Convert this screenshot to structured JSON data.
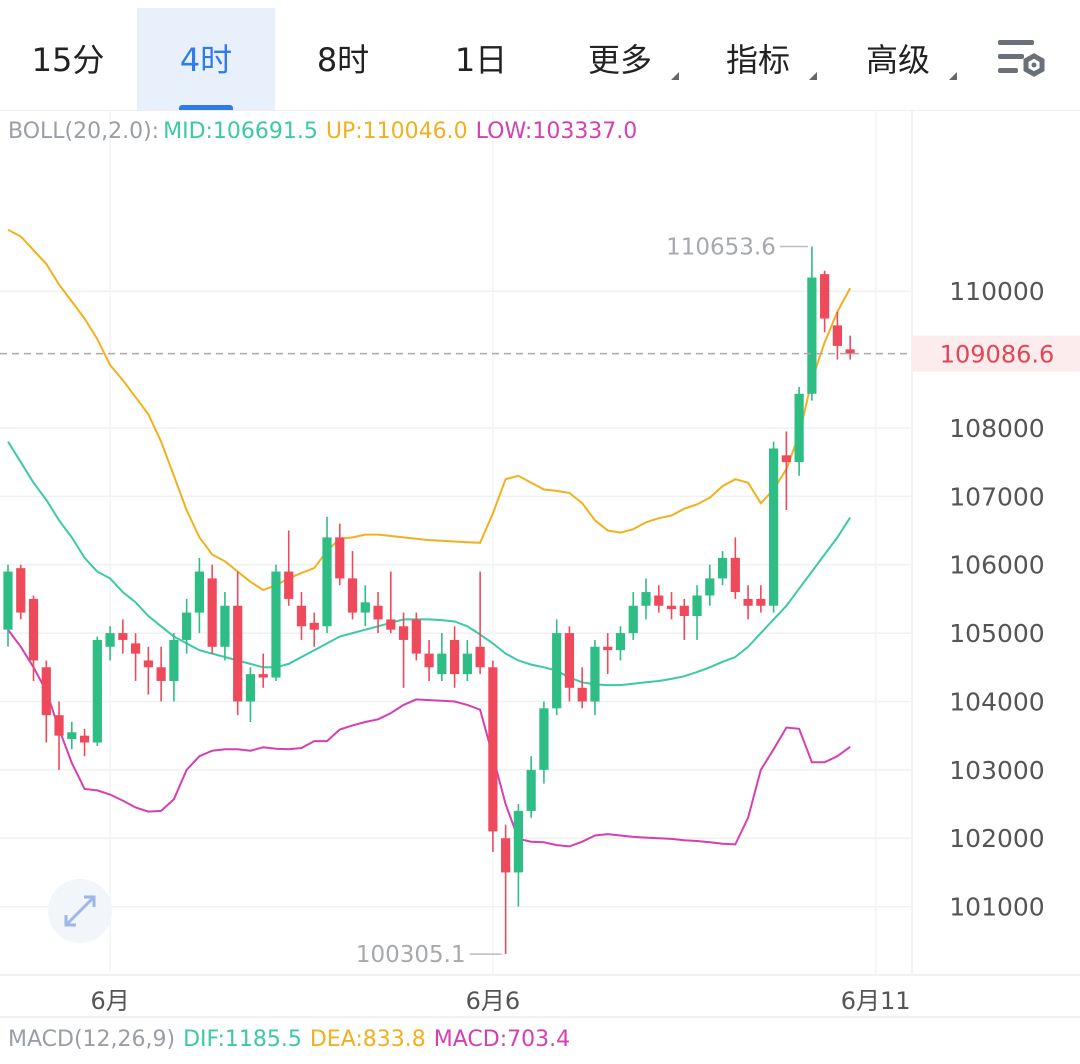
{
  "tabs": [
    {
      "label": "15分",
      "dropdown": false
    },
    {
      "label": "4时",
      "dropdown": false
    },
    {
      "label": "8时",
      "dropdown": false
    },
    {
      "label": "1日",
      "dropdown": false
    },
    {
      "label": "更多",
      "dropdown": true
    },
    {
      "label": "指标",
      "dropdown": true
    },
    {
      "label": "高级",
      "dropdown": true
    }
  ],
  "active_tab": 1,
  "chart_data": {
    "type": "candlestick",
    "boll_label": "BOLL(20,2.0):",
    "categories": [
      null,
      null,
      null,
      null,
      null,
      null,
      null,
      null,
      "6月",
      null,
      null,
      null,
      null,
      null,
      null,
      null,
      null,
      null,
      null,
      null,
      null,
      null,
      null,
      null,
      null,
      null,
      null,
      null,
      null,
      null,
      null,
      null,
      null,
      null,
      null,
      null,
      null,
      null,
      "6月6",
      null,
      null,
      null,
      null,
      null,
      null,
      null,
      null,
      null,
      null,
      null,
      null,
      null,
      null,
      null,
      null,
      null,
      null,
      null,
      null,
      null,
      null,
      null,
      null,
      null,
      null,
      null,
      null,
      null,
      "6月11"
    ],
    "open": [
      105050,
      105950,
      105500,
      104500,
      103800,
      103450,
      103500,
      103400,
      104800,
      105000,
      104850,
      104600,
      104500,
      104300,
      104900,
      105300,
      105800,
      104800,
      105400,
      104000,
      104400,
      104350,
      105900,
      105400,
      105150,
      105100,
      106400,
      105800,
      105300,
      105400,
      105200,
      105100,
      105200,
      104700,
      104400,
      104900,
      104400,
      104800,
      104500,
      102000,
      101500,
      102400,
      103000,
      103900,
      105000,
      104200,
      104000,
      104800,
      104750,
      105000,
      105400,
      105550,
      105400,
      105400,
      105250,
      105550,
      105800,
      106100,
      105500,
      105500,
      105400,
      107600,
      107500,
      108500,
      110250,
      109500,
      109150,
      null,
      null
    ],
    "high": [
      106000,
      106000,
      105550,
      104600,
      104000,
      103700,
      103600,
      104950,
      105100,
      105200,
      105000,
      104800,
      104800,
      105000,
      105500,
      106100,
      106000,
      105600,
      105900,
      104500,
      104700,
      106000,
      106500,
      105600,
      105300,
      106700,
      106600,
      106200,
      105700,
      105600,
      105900,
      105300,
      105300,
      104900,
      105000,
      105100,
      104900,
      105900,
      104600,
      102200,
      102500,
      103200,
      104000,
      105200,
      105100,
      104500,
      104900,
      105000,
      105100,
      105600,
      105800,
      105700,
      105600,
      105500,
      105700,
      106000,
      106200,
      106400,
      105700,
      105700,
      107800,
      107950,
      108600,
      110653.6,
      110300,
      109700,
      109350,
      null,
      null
    ],
    "low": [
      104800,
      105200,
      104300,
      103400,
      103000,
      103300,
      103200,
      103350,
      104600,
      104700,
      104300,
      104100,
      104000,
      104000,
      104700,
      105000,
      104700,
      104600,
      103800,
      103700,
      104200,
      104300,
      105400,
      104900,
      104800,
      105000,
      105700,
      105200,
      105100,
      105000,
      105000,
      104200,
      104600,
      104300,
      104300,
      104200,
      104300,
      104400,
      101800,
      100305.1,
      101000,
      102300,
      102800,
      103800,
      104000,
      103900,
      103800,
      104400,
      104600,
      104900,
      105200,
      105300,
      105200,
      104900,
      104900,
      105400,
      105700,
      105500,
      105200,
      105300,
      105300,
      106800,
      107300,
      108400,
      109400,
      109000,
      109000,
      null,
      null
    ],
    "close": [
      105900,
      105300,
      104600,
      103800,
      103500,
      103550,
      103400,
      104900,
      105000,
      104900,
      104700,
      104500,
      104300,
      104900,
      105300,
      105900,
      104800,
      105400,
      104000,
      104400,
      104350,
      105900,
      105500,
      105100,
      105050,
      106400,
      105800,
      105300,
      105450,
      105200,
      105050,
      104900,
      104700,
      104500,
      104700,
      104400,
      104700,
      104500,
      102100,
      101500,
      102400,
      103000,
      103900,
      105000,
      104200,
      104000,
      104800,
      104750,
      105000,
      105400,
      105600,
      105400,
      105350,
      105250,
      105550,
      105800,
      106100,
      105600,
      105400,
      105400,
      107700,
      107500,
      108500,
      110200,
      109600,
      109200,
      109086.6,
      null,
      null
    ],
    "up_color": "#2ebd85",
    "down_color": "#ef4a5c",
    "bollinger": [
      {
        "label": "MID:106691.5",
        "color": "#3cc9a6",
        "values": [
          107800,
          107500,
          107200,
          106950,
          106650,
          106400,
          106100,
          105900,
          105800,
          105600,
          105450,
          105250,
          105100,
          104950,
          104850,
          104750,
          104700,
          104650,
          104600,
          104550,
          104500,
          104500,
          104550,
          104650,
          104750,
          104850,
          104950,
          105000,
          105050,
          105100,
          105150,
          105200,
          105200,
          105200,
          105190,
          105170,
          105100,
          104980,
          104850,
          104700,
          104600,
          104540,
          104500,
          104450,
          104350,
          104280,
          104250,
          104240,
          104240,
          104260,
          104280,
          104300,
          104330,
          104370,
          104430,
          104500,
          104580,
          104650,
          104800,
          105000,
          105200,
          105400,
          105650,
          105900,
          106150,
          106400,
          106691.5,
          null,
          null
        ]
      },
      {
        "label": "UP:110046.0",
        "color": "#f2b01e",
        "values": [
          110900,
          110800,
          110600,
          110400,
          110100,
          109850,
          109600,
          109300,
          108920,
          108700,
          108450,
          108200,
          107800,
          107300,
          106800,
          106400,
          106150,
          106050,
          105900,
          105750,
          105630,
          105700,
          105800,
          105880,
          105950,
          106200,
          106380,
          106400,
          106440,
          106440,
          106420,
          106400,
          106380,
          106360,
          106350,
          106340,
          106330,
          106320,
          106750,
          107250,
          107300,
          107200,
          107100,
          107080,
          107050,
          106900,
          106650,
          106500,
          106470,
          106520,
          106620,
          106680,
          106720,
          106820,
          106880,
          106980,
          107150,
          107250,
          107200,
          106900,
          107100,
          107400,
          107900,
          108700,
          109250,
          109700,
          110046,
          null,
          null
        ]
      },
      {
        "label": "LOW:103337.0",
        "color": "#d53fb0",
        "values": [
          105050,
          104800,
          104500,
          104150,
          103600,
          103100,
          102720,
          102700,
          102640,
          102550,
          102450,
          102390,
          102400,
          102570,
          103000,
          103200,
          103280,
          103300,
          103300,
          103280,
          103330,
          103310,
          103300,
          103320,
          103420,
          103420,
          103590,
          103650,
          103700,
          103740,
          103830,
          103950,
          104030,
          104020,
          104010,
          104000,
          103950,
          103880,
          103200,
          102500,
          101990,
          101950,
          101940,
          101900,
          101880,
          101950,
          102040,
          102060,
          102040,
          102020,
          102010,
          102000,
          101990,
          101970,
          101960,
          101940,
          101920,
          101910,
          102300,
          103000,
          103300,
          103620,
          103600,
          103110,
          103110,
          103200,
          103337,
          null,
          null
        ]
      }
    ],
    "ylim": [
      100000,
      112650
    ],
    "yticks": [
      101000,
      102000,
      103000,
      104000,
      105000,
      106000,
      107000,
      108000,
      110000
    ],
    "grid": true,
    "macd_labels": [
      {
        "text": "MACD(12,26,9)",
        "color": "#9a9ea6"
      },
      {
        "text": "DIF:1185.5",
        "color": "#3cc9a6"
      },
      {
        "text": "DEA:833.8",
        "color": "#f2b01e"
      },
      {
        "text": "MACD:703.4",
        "color": "#d53fb0"
      }
    ]
  }
}
